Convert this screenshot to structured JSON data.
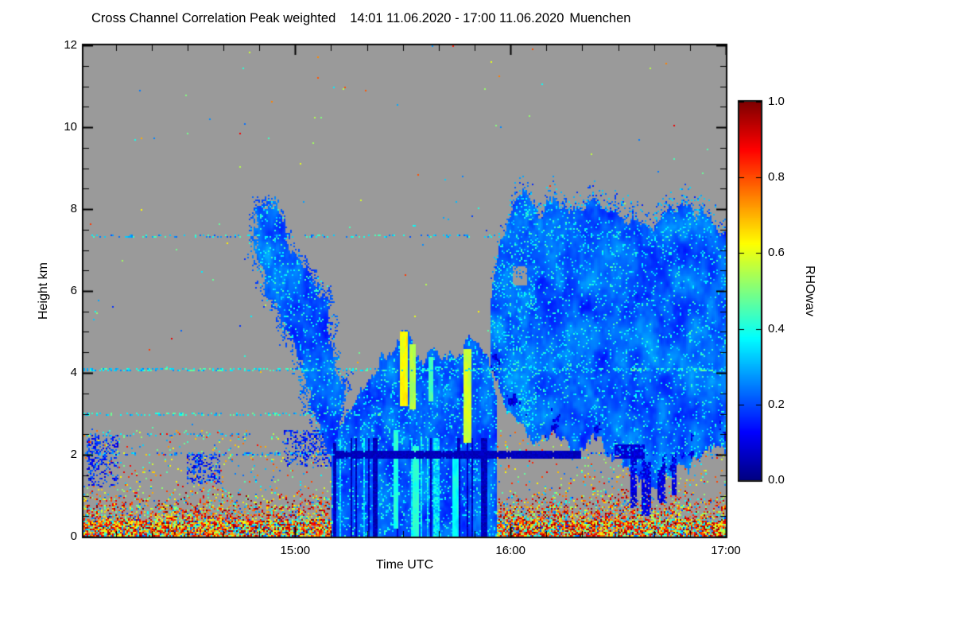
{
  "chart_data": {
    "type": "heatmap",
    "title": "Cross Channel Correlation Peak weighted",
    "period": "14:01 11.06.2020 - 17:00 11.06.2020",
    "station": "Muenchen",
    "xlabel": "Time UTC",
    "ylabel": "Height km",
    "colorbar_label": "RHOwav",
    "x_range_hours": [
      14.0167,
      17.0
    ],
    "y_range_km": [
      0,
      12
    ],
    "x_ticks": [
      {
        "hours": 15.0,
        "label": "15:00"
      },
      {
        "hours": 16.0,
        "label": "16:00"
      },
      {
        "hours": 17.0,
        "label": "17:00"
      }
    ],
    "x_minor_step_minutes": 10,
    "y_ticks": [
      {
        "km": 0,
        "label": "0"
      },
      {
        "km": 2,
        "label": "2"
      },
      {
        "km": 4,
        "label": "4"
      },
      {
        "km": 6,
        "label": "6"
      },
      {
        "km": 8,
        "label": "8"
      },
      {
        "km": 10,
        "label": "10"
      },
      {
        "km": 12,
        "label": "12"
      }
    ],
    "y_minor_step_km": 0.5,
    "colorbar_ticks": [
      {
        "value": 0.0,
        "label": "0.0"
      },
      {
        "value": 0.2,
        "label": "0.2"
      },
      {
        "value": 0.4,
        "label": "0.4"
      },
      {
        "value": 0.6,
        "label": "0.6"
      },
      {
        "value": 0.8,
        "label": "0.8"
      },
      {
        "value": 1.0,
        "label": "1.0"
      }
    ],
    "nodata_color": "#9A9A9A",
    "axis_color": "#000000",
    "background_color": "#FFFFFF",
    "colormap_stops": [
      [
        0.0,
        "#000082"
      ],
      [
        0.125,
        "#0000FF"
      ],
      [
        0.375,
        "#00FFFF"
      ],
      [
        0.625,
        "#FFFF00"
      ],
      [
        0.875,
        "#FF0000"
      ],
      [
        1.0,
        "#800000"
      ]
    ],
    "features": {
      "plume": {
        "height_range": [
          2.0,
          8.35
        ],
        "center_by_height": [
          [
            2.0,
            15.19
          ],
          [
            3.0,
            15.15
          ],
          [
            4.0,
            15.12
          ],
          [
            5.0,
            15.06
          ],
          [
            6.0,
            14.99
          ],
          [
            7.0,
            14.9
          ],
          [
            8.35,
            14.86
          ]
        ],
        "halfwidth_by_height": [
          [
            2.0,
            0.05
          ],
          [
            3.0,
            0.09
          ],
          [
            4.0,
            0.12
          ],
          [
            5.0,
            0.13
          ],
          [
            6.0,
            0.17
          ],
          [
            7.0,
            0.11
          ],
          [
            8.35,
            0.06
          ]
        ],
        "ragged_top_start": 7.9,
        "value_base": 0.11,
        "value_noise": 0.2,
        "cyan_speckle_prob": 0.1
      },
      "central_cloud": {
        "t_range": [
          15.17,
          15.94
        ],
        "top_profile": [
          [
            15.17,
            2.2
          ],
          [
            15.24,
            3.1
          ],
          [
            15.32,
            3.6
          ],
          [
            15.41,
            4.3
          ],
          [
            15.46,
            4.5
          ],
          [
            15.5,
            5.2
          ],
          [
            15.54,
            4.9
          ],
          [
            15.58,
            4.2
          ],
          [
            15.64,
            4.5
          ],
          [
            15.72,
            4.4
          ],
          [
            15.79,
            4.7
          ],
          [
            15.85,
            4.8
          ],
          [
            15.9,
            4.3
          ],
          [
            15.94,
            3.4
          ]
        ],
        "value_base": 0.12,
        "value_noise": 0.18,
        "cyan_speckle_prob": 0.12,
        "bright_columns": [
          {
            "t": 15.505,
            "halfwidth": 0.02,
            "h0": 3.2,
            "h1": 5.0,
            "value": 0.62
          },
          {
            "t": 15.545,
            "halfwidth": 0.018,
            "h0": 3.1,
            "h1": 4.7,
            "value": 0.55
          },
          {
            "t": 15.63,
            "halfwidth": 0.01,
            "h0": 3.3,
            "h1": 4.4,
            "value": 0.45
          },
          {
            "t": 15.8,
            "halfwidth": 0.018,
            "h0": 2.3,
            "h1": 4.6,
            "value": 0.58
          },
          {
            "t": 15.47,
            "halfwidth": 0.012,
            "h0": 0.2,
            "h1": 2.6,
            "value": 0.4
          },
          {
            "t": 15.56,
            "halfwidth": 0.012,
            "h0": 0.0,
            "h1": 2.2,
            "value": 0.42
          },
          {
            "t": 15.745,
            "halfwidth": 0.012,
            "h0": 0.0,
            "h1": 1.9,
            "value": 0.38
          }
        ]
      },
      "right_cloud": {
        "t_range": [
          15.91,
          17.0
        ],
        "top_profile": [
          [
            15.91,
            5.6
          ],
          [
            15.95,
            7.2
          ],
          [
            16.0,
            8.0
          ],
          [
            16.06,
            8.3
          ],
          [
            16.12,
            7.9
          ],
          [
            16.2,
            8.2
          ],
          [
            16.3,
            8.0
          ],
          [
            16.42,
            8.15
          ],
          [
            16.52,
            7.9
          ],
          [
            16.62,
            7.5
          ],
          [
            16.72,
            7.9
          ],
          [
            16.84,
            8.05
          ],
          [
            16.93,
            7.8
          ],
          [
            17.0,
            7.2
          ]
        ],
        "bottom_profile": [
          [
            15.91,
            4.4
          ],
          [
            15.97,
            3.3
          ],
          [
            16.03,
            2.8
          ],
          [
            16.1,
            2.2
          ],
          [
            16.2,
            2.5
          ],
          [
            16.3,
            2.0
          ],
          [
            16.4,
            2.3
          ],
          [
            16.5,
            1.8
          ],
          [
            16.6,
            1.5
          ],
          [
            16.7,
            1.2
          ],
          [
            16.8,
            1.7
          ],
          [
            16.9,
            2.0
          ],
          [
            17.0,
            2.2
          ]
        ],
        "value_base": 0.12,
        "value_noise": 0.2,
        "cyan_speckle_prob_left": 0.16,
        "cyan_speckle_prob": 0.09,
        "tendrils": [
          {
            "t": 16.57,
            "halfwidth": 0.015,
            "h_bottom": 0.7
          },
          {
            "t": 16.63,
            "halfwidth": 0.02,
            "h_bottom": 0.5
          },
          {
            "t": 16.7,
            "halfwidth": 0.018,
            "h_bottom": 0.8
          },
          {
            "t": 16.76,
            "halfwidth": 0.012,
            "h_bottom": 1.0
          }
        ],
        "holes": [
          [
            16.01,
            16.08,
            6.15,
            6.6
          ]
        ]
      },
      "melting_band": {
        "t_range": [
          15.18,
          16.33
        ],
        "height": 2.0,
        "half_thickness": 0.09,
        "value": 0.04
      },
      "dark_spot": {
        "t_range": [
          16.48,
          16.62
        ],
        "h_range": [
          1.9,
          2.25
        ],
        "value": 0.06
      },
      "boundary_layer": {
        "segments": [
          [
            14.0167,
            15.22
          ],
          [
            15.93,
            17.0
          ]
        ],
        "top_base": 0.85,
        "top_noise": 0.5,
        "sparse_top": 2.6,
        "sparse_density": 0.045,
        "warm_fraction": 0.72
      },
      "blue_patches": [
        [
          14.03,
          14.18,
          1.2,
          2.5
        ],
        [
          14.95,
          15.18,
          1.7,
          2.6
        ],
        [
          14.5,
          14.65,
          1.3,
          2.0
        ]
      ],
      "horizontal_lines": [
        {
          "h": 7.35,
          "t0": 14.05,
          "t1": 16.95,
          "density": 0.22,
          "v0": 0.2,
          "v1": 0.45
        },
        {
          "h": 4.08,
          "t0": 14.0167,
          "t1": 17.0,
          "density": 0.4,
          "v0": 0.25,
          "v1": 0.5
        },
        {
          "h": 3.0,
          "t0": 14.0167,
          "t1": 15.4,
          "density": 0.28,
          "v0": 0.25,
          "v1": 0.5
        },
        {
          "h": 2.5,
          "t0": 14.0167,
          "t1": 14.8,
          "density": 0.12,
          "v0": 0.2,
          "v1": 0.4
        },
        {
          "h": 2.02,
          "t0": 14.0167,
          "t1": 15.18,
          "density": 0.26,
          "v0": 0.15,
          "v1": 0.4
        },
        {
          "h": 2.02,
          "t0": 16.35,
          "t1": 17.0,
          "density": 0.22,
          "v0": 0.1,
          "v1": 0.35
        }
      ],
      "stray_speckle_density": 0.0015
    }
  }
}
